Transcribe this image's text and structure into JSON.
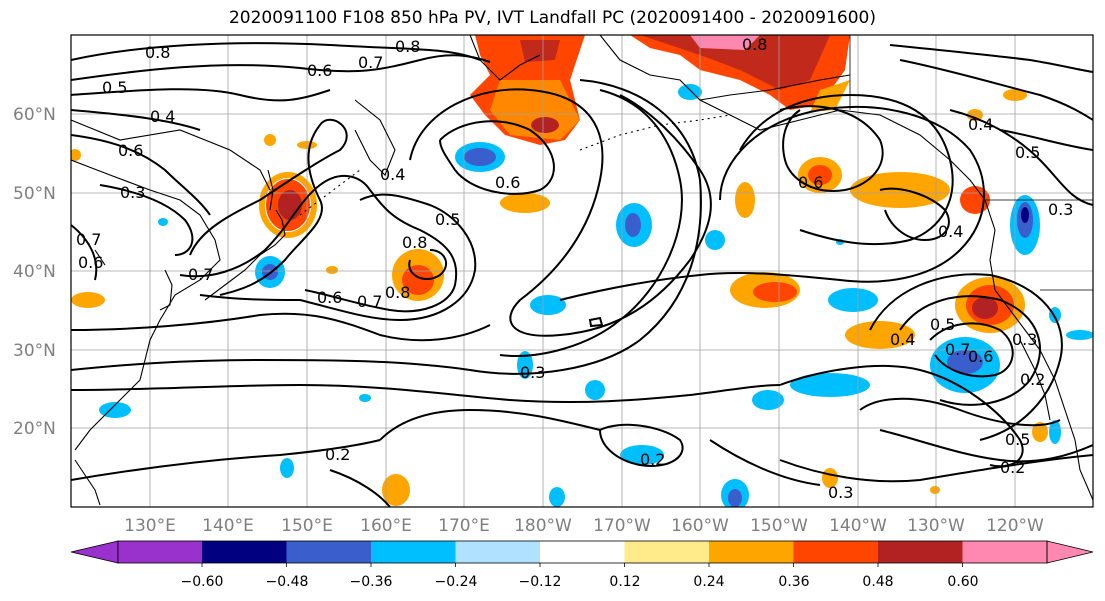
{
  "title": "2020091100 F108 850 hPa PV, IVT Landfall PC (2020091400 - 2020091600)",
  "map": {
    "lon_range": [
      120,
      250
    ],
    "lat_range": [
      10,
      70
    ],
    "lat_labels": [
      "20°N",
      "30°N",
      "40°N",
      "50°N",
      "60°N"
    ],
    "lon_labels": [
      "130°E",
      "140°E",
      "150°E",
      "160°E",
      "170°E",
      "180°W",
      "170°W",
      "160°W",
      "150°W",
      "140°W",
      "130°W",
      "120°W"
    ],
    "contour_labels": [
      "0.8",
      "0.6",
      "0.5",
      "0.4",
      "0.6",
      "0.3",
      "0.7",
      "0.4",
      "0.6",
      "0.7",
      "0.8",
      "0.5",
      "0.8",
      "0.6",
      "0.7",
      "0.8",
      "0.3",
      "0.2",
      "0.2",
      "0.6",
      "0.8",
      "0.4",
      "0.5",
      "0.3",
      "0.4",
      "0.5",
      "0.7",
      "0.6",
      "0.3",
      "0.2",
      "0.5",
      "0.2",
      "0.3",
      "0.4",
      "0.7",
      "0.6"
    ]
  },
  "colorbar": {
    "ticks": [
      "−0.60",
      "−0.48",
      "−0.36",
      "−0.24",
      "−0.12",
      "0.12",
      "0.24",
      "0.36",
      "0.48",
      "0.60"
    ],
    "colors": [
      "#9932cc",
      "#000080",
      "#3a5fcd",
      "#00bfff",
      "#b0e2ff",
      "#ffffff",
      "#ffeb8a",
      "#ffa500",
      "#ff4500",
      "#b22222",
      "#ff88b0"
    ]
  },
  "palette": {
    "neg1": "#00bfff",
    "neg2": "#3a5fcd",
    "neg3": "#000080",
    "negLight": "#b0e2ff",
    "pos1": "#ffeb8a",
    "pos2": "#ffa500",
    "pos3": "#ff4500",
    "pos4": "#b22222",
    "pos5": "#ff88b0"
  }
}
